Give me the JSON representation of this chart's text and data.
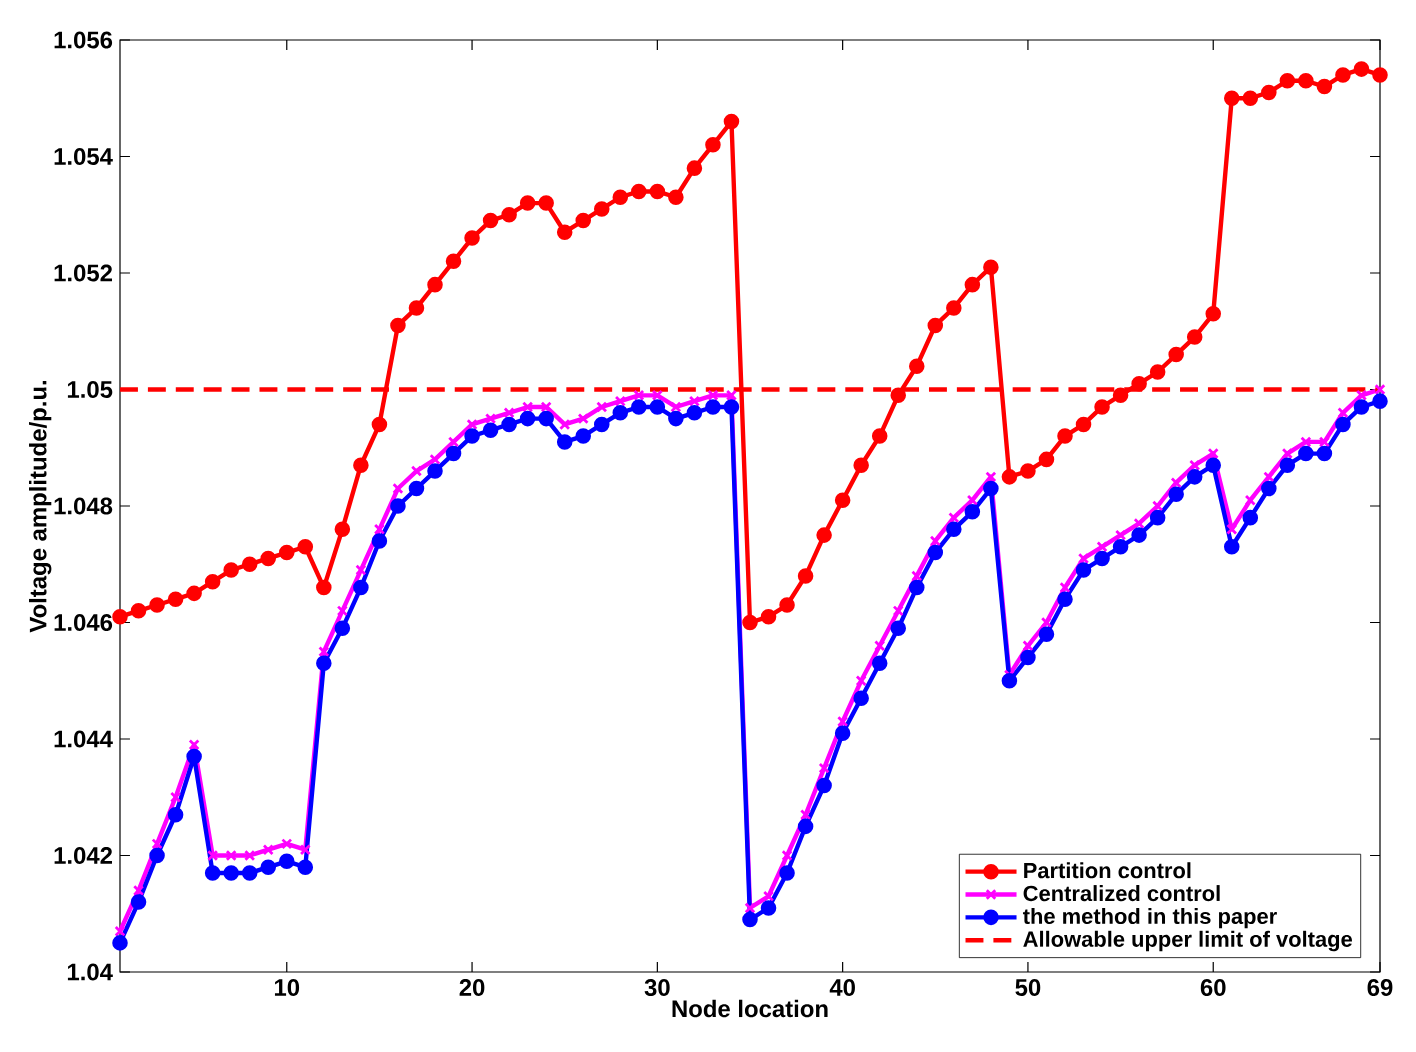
{
  "chart_data": {
    "type": "line",
    "xlabel": "Node location",
    "ylabel": "Voltage amplitude/p.u.",
    "x": [
      1,
      2,
      3,
      4,
      5,
      6,
      7,
      8,
      9,
      10,
      11,
      12,
      13,
      14,
      15,
      16,
      17,
      18,
      19,
      20,
      21,
      22,
      23,
      24,
      25,
      26,
      27,
      28,
      29,
      30,
      31,
      32,
      33,
      34,
      35,
      36,
      37,
      38,
      39,
      40,
      41,
      42,
      43,
      44,
      45,
      46,
      47,
      48,
      49,
      50,
      51,
      52,
      53,
      54,
      55,
      56,
      57,
      58,
      59,
      60,
      61,
      62,
      63,
      64,
      65,
      66,
      67,
      68,
      69
    ],
    "series": [
      {
        "name": "Partition control",
        "color": "#ff0000",
        "marker": "circle",
        "values": [
          1.0461,
          1.0462,
          1.0463,
          1.0464,
          1.0465,
          1.0467,
          1.0469,
          1.047,
          1.0471,
          1.0472,
          1.0473,
          1.0466,
          1.0476,
          1.0487,
          1.0494,
          1.0511,
          1.0514,
          1.0518,
          1.0522,
          1.0526,
          1.0529,
          1.053,
          1.0532,
          1.0532,
          1.0527,
          1.0529,
          1.0531,
          1.0533,
          1.0534,
          1.0534,
          1.0533,
          1.0538,
          1.0542,
          1.0546,
          1.046,
          1.0461,
          1.0463,
          1.0468,
          1.0475,
          1.0481,
          1.0487,
          1.0492,
          1.0499,
          1.0504,
          1.0511,
          1.0514,
          1.0518,
          1.0521,
          1.0485,
          1.0486,
          1.0488,
          1.0492,
          1.0494,
          1.0497,
          1.0499,
          1.0501,
          1.0503,
          1.0506,
          1.0509,
          1.0513,
          1.055,
          1.055,
          1.0551,
          1.0553,
          1.0553,
          1.0552,
          1.0554,
          1.0555,
          1.0554
        ]
      },
      {
        "name": "Centralized control",
        "color": "#ff00ff",
        "marker": "cross",
        "values": [
          1.0407,
          1.0414,
          1.0422,
          1.043,
          1.0439,
          1.042,
          1.042,
          1.042,
          1.0421,
          1.0422,
          1.0421,
          1.0455,
          1.0462,
          1.0469,
          1.0476,
          1.0483,
          1.0486,
          1.0488,
          1.0491,
          1.0494,
          1.0495,
          1.0496,
          1.0497,
          1.0497,
          1.0494,
          1.0495,
          1.0497,
          1.0498,
          1.0499,
          1.0499,
          1.0497,
          1.0498,
          1.0499,
          1.0499,
          1.0411,
          1.0413,
          1.042,
          1.0427,
          1.0435,
          1.0443,
          1.045,
          1.0456,
          1.0462,
          1.0468,
          1.0474,
          1.0478,
          1.0481,
          1.0485,
          1.0451,
          1.0456,
          1.046,
          1.0466,
          1.0471,
          1.0473,
          1.0475,
          1.0477,
          1.048,
          1.0484,
          1.0487,
          1.0489,
          1.0476,
          1.0481,
          1.0485,
          1.0489,
          1.0491,
          1.0491,
          1.0496,
          1.0499,
          1.05
        ]
      },
      {
        "name": "the method in this paper",
        "color": "#0000ff",
        "marker": "circle",
        "values": [
          1.0405,
          1.0412,
          1.042,
          1.0427,
          1.0437,
          1.0417,
          1.0417,
          1.0417,
          1.0418,
          1.0419,
          1.0418,
          1.0453,
          1.0459,
          1.0466,
          1.0474,
          1.048,
          1.0483,
          1.0486,
          1.0489,
          1.0492,
          1.0493,
          1.0494,
          1.0495,
          1.0495,
          1.0491,
          1.0492,
          1.0494,
          1.0496,
          1.0497,
          1.0497,
          1.0495,
          1.0496,
          1.0497,
          1.0497,
          1.0409,
          1.0411,
          1.0417,
          1.0425,
          1.0432,
          1.0441,
          1.0447,
          1.0453,
          1.0459,
          1.0466,
          1.0472,
          1.0476,
          1.0479,
          1.0483,
          1.045,
          1.0454,
          1.0458,
          1.0464,
          1.0469,
          1.0471,
          1.0473,
          1.0475,
          1.0478,
          1.0482,
          1.0485,
          1.0487,
          1.0473,
          1.0478,
          1.0483,
          1.0487,
          1.0489,
          1.0489,
          1.0494,
          1.0497,
          1.0498
        ]
      }
    ],
    "ref_lines": [
      {
        "axis": "y",
        "value": 1.05,
        "label": "Allowable upper limit of voltage",
        "color": "#ff0000",
        "line_style": "dashed"
      }
    ],
    "xlim": [
      1,
      69
    ],
    "xticks": [
      10,
      20,
      30,
      40,
      50,
      60,
      69
    ],
    "ylim": [
      1.04,
      1.056
    ],
    "yticks": [
      1.04,
      1.042,
      1.044,
      1.046,
      1.048,
      1.05,
      1.052,
      1.054,
      1.056
    ],
    "grid": false,
    "legend": "bottom right"
  }
}
